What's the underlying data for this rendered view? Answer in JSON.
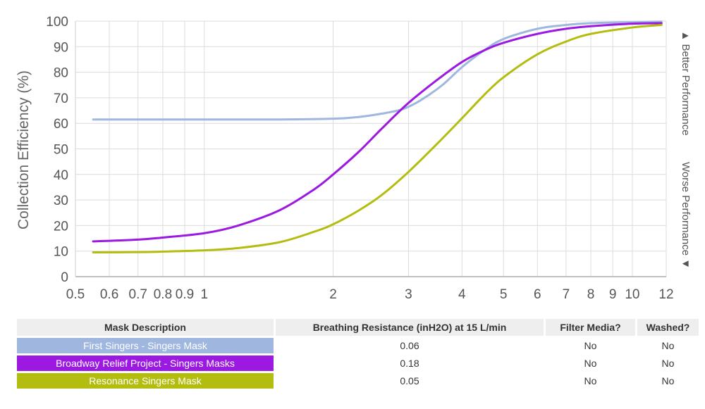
{
  "chart_data": {
    "type": "line",
    "x_scale": "log",
    "xlim": [
      0.5,
      12
    ],
    "ylim": [
      0,
      100
    ],
    "grid": true,
    "ylabel": "Collection Efficiency (%)",
    "xlabel": "",
    "x_ticks": [
      {
        "value": 0.5,
        "label": "0.5"
      },
      {
        "value": 0.6,
        "label": "0.6"
      },
      {
        "value": 0.7,
        "label": "0.7"
      },
      {
        "value": 0.8,
        "label": "0.8"
      },
      {
        "value": 0.9,
        "label": "0.9"
      },
      {
        "value": 1,
        "label": "1"
      },
      {
        "value": 2,
        "label": "2"
      },
      {
        "value": 3,
        "label": "3"
      },
      {
        "value": 4,
        "label": "4"
      },
      {
        "value": 5,
        "label": "5"
      },
      {
        "value": 6,
        "label": "6"
      },
      {
        "value": 7,
        "label": "7"
      },
      {
        "value": 8,
        "label": "8"
      },
      {
        "value": 9,
        "label": "9"
      },
      {
        "value": 10,
        "label": "10"
      },
      {
        "value": 12,
        "label": "12"
      }
    ],
    "y_ticks": [
      0,
      10,
      20,
      30,
      40,
      50,
      60,
      70,
      80,
      90,
      100
    ],
    "annotations": {
      "better": "▲ Better Performance",
      "worse": "Worse Performance ▼"
    },
    "series": [
      {
        "name": "First Singers - Singers Mask",
        "color": "#9fb7df",
        "x": [
          0.55,
          0.7,
          1.0,
          1.5,
          2.0,
          2.3,
          2.6,
          2.9,
          3.2,
          3.6,
          4.0,
          4.5,
          5.0,
          6.0,
          7.0,
          8.0,
          10.0,
          11.7
        ],
        "y": [
          61.5,
          61.5,
          61.5,
          61.5,
          61.8,
          62.5,
          63.8,
          65.5,
          69.0,
          75.0,
          82.0,
          88.5,
          93.0,
          97.0,
          98.5,
          99.2,
          99.6,
          99.8
        ]
      },
      {
        "name": "Broadway Relief Project - Singers Masks",
        "color": "#9b19e0",
        "x": [
          0.55,
          0.7,
          0.8,
          1.0,
          1.2,
          1.5,
          1.8,
          2.0,
          2.3,
          2.6,
          3.0,
          3.5,
          4.0,
          4.5,
          5.0,
          6.0,
          7.0,
          8.0,
          10.0,
          11.7
        ],
        "y": [
          13.8,
          14.5,
          15.3,
          17.0,
          20.0,
          26.0,
          34.0,
          40.0,
          49.0,
          58.0,
          68.0,
          77.0,
          84.0,
          88.5,
          91.5,
          95.0,
          97.0,
          98.0,
          99.0,
          99.2
        ]
      },
      {
        "name": "Resonance Singers Mask",
        "color": "#b3bd10",
        "x": [
          0.55,
          0.7,
          0.8,
          1.0,
          1.2,
          1.5,
          1.8,
          2.0,
          2.3,
          2.6,
          3.0,
          3.5,
          4.0,
          4.5,
          5.0,
          6.0,
          7.0,
          8.0,
          10.0,
          11.7
        ],
        "y": [
          9.5,
          9.6,
          9.8,
          10.3,
          11.2,
          13.5,
          17.5,
          20.5,
          26.0,
          32.0,
          41.0,
          52.0,
          62.0,
          71.0,
          78.0,
          87.0,
          92.0,
          95.0,
          97.5,
          98.5
        ]
      }
    ]
  },
  "table": {
    "headers": [
      "Mask Description",
      "Breathing Resistance (inH2O) at 15 L/min",
      "Filter Media?",
      "Washed?"
    ],
    "rows": [
      {
        "description": "First Singers - Singers Mask",
        "color": "#9fb7df",
        "resistance": "0.06",
        "filter": "No",
        "washed": "No"
      },
      {
        "description": "Broadway Relief Project - Singers Masks",
        "color": "#9b19e0",
        "resistance": "0.18",
        "filter": "No",
        "washed": "No"
      },
      {
        "description": "Resonance Singers Mask",
        "color": "#b3bd10",
        "resistance": "0.05",
        "filter": "No",
        "washed": "No"
      }
    ]
  }
}
